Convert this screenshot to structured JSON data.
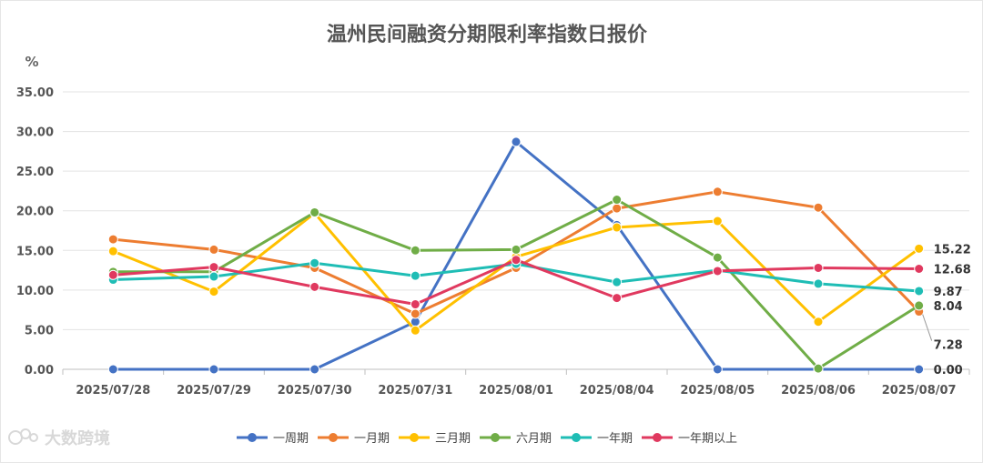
{
  "chart_data": {
    "type": "line",
    "title": "温州民间融资分期限利率指数日报价",
    "ylabel": "%",
    "ylim": [
      0,
      35
    ],
    "yticks": [
      "0.00",
      "5.00",
      "10.00",
      "15.00",
      "20.00",
      "25.00",
      "30.00",
      "35.00"
    ],
    "categories": [
      "2025/07/28",
      "2025/07/29",
      "2025/07/30",
      "2025/07/31",
      "2025/08/01",
      "2025/08/04",
      "2025/08/05",
      "2025/08/06",
      "2025/08/07"
    ],
    "grid": "horizontal",
    "legend_position": "bottom",
    "series": [
      {
        "name": "一周期",
        "color": "#4472c4",
        "values": [
          0,
          0,
          0,
          6.0,
          28.7,
          18.2,
          0,
          0,
          0
        ],
        "end_label": "0.00"
      },
      {
        "name": "一月期",
        "color": "#ed7d31",
        "values": [
          16.4,
          15.1,
          12.8,
          7.0,
          12.8,
          20.3,
          22.4,
          20.4,
          7.28
        ],
        "end_label": "7.28"
      },
      {
        "name": "三月期",
        "color": "#ffc000",
        "values": [
          14.9,
          9.8,
          19.7,
          4.9,
          14.2,
          17.9,
          18.7,
          6.0,
          15.22
        ],
        "end_label": "15.22"
      },
      {
        "name": "六月期",
        "color": "#70ad47",
        "values": [
          12.3,
          12.3,
          19.8,
          15.0,
          15.1,
          21.4,
          14.1,
          0.1,
          8.04
        ],
        "end_label": "8.04"
      },
      {
        "name": "一年期",
        "color": "#1fbdb5",
        "values": [
          11.3,
          11.7,
          13.4,
          11.8,
          13.3,
          11.0,
          12.5,
          10.8,
          9.87
        ],
        "end_label": "9.87"
      },
      {
        "name": "一年期以上",
        "color": "#e0395f",
        "values": [
          11.9,
          12.9,
          10.4,
          8.2,
          13.8,
          9.0,
          12.4,
          12.8,
          12.68
        ],
        "end_label": "12.68"
      }
    ]
  },
  "watermark": {
    "text": "大数跨境",
    "icon": "logo-icon"
  }
}
